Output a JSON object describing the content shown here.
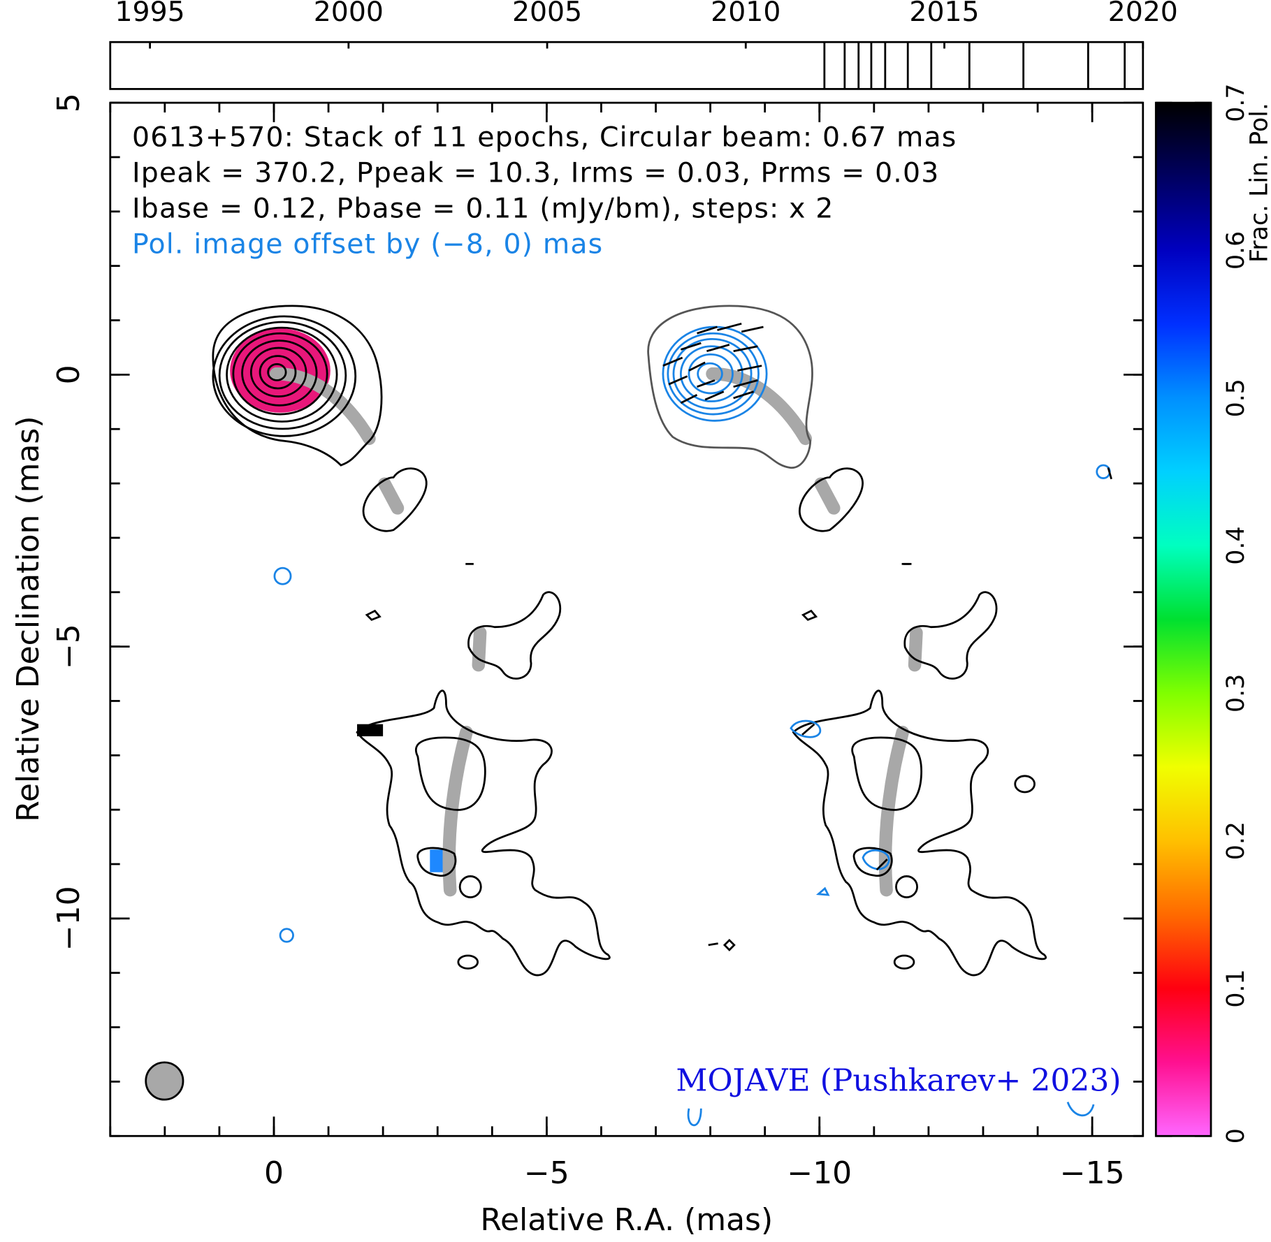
{
  "chart_data": {
    "type": "contour-map",
    "annotations": [
      "0613+570: Stack of 11 epochs, Circular beam: 0.67 mas",
      "Ipeak = 370.2, Ppeak = 10.3, Irms = 0.03, Prms = 0.03",
      "Ibase = 0.12, Pbase = 0.11 (mJy/bm), steps: x 2",
      "Pol. image offset by (−8, 0) mas"
    ],
    "credit": "MOJAVE (Pushkarev+ 2023)",
    "xlabel": "Relative R.A. (mas)",
    "ylabel": "Relative Declination (mas)",
    "xlim": [
      3,
      -15.93
    ],
    "xticks": [
      0,
      {
        "value": -5,
        "label": "−5"
      },
      {
        "value": -10,
        "label": "−10"
      },
      {
        "value": -15,
        "label": "−15"
      }
    ],
    "ylim": [
      -14,
      5
    ],
    "yticks": [
      5,
      0,
      {
        "value": -5,
        "label": "−5"
      },
      {
        "value": -10,
        "label": "−10"
      }
    ],
    "epoch_xlim": [
      1994,
      2020
    ],
    "epoch_xticks": [
      1995,
      2000,
      2005,
      2010,
      2015,
      2020
    ],
    "epochs": [
      2011.98,
      2012.49,
      2012.84,
      2013.16,
      2013.51,
      2014.08,
      2014.67,
      2015.63,
      2016.99,
      2018.62,
      2019.54
    ],
    "colorbar": {
      "label": "Frac. Lin. Pol.",
      "lim": [
        0,
        0.7
      ],
      "ticks": [
        0,
        0.1,
        0.2,
        0.3,
        0.4,
        0.5,
        0.6,
        0.7
      ],
      "colormap": [
        "#ff66ff",
        "#ff1090",
        "#ff0010",
        "#ff6a00",
        "#ffc000",
        "#f0ff00",
        "#80ff00",
        "#00e030",
        "#00ffc0",
        "#00d0ff",
        "#0090ff",
        "#0030ff",
        "#0000c0",
        "#000060",
        "#000000"
      ]
    }
  }
}
